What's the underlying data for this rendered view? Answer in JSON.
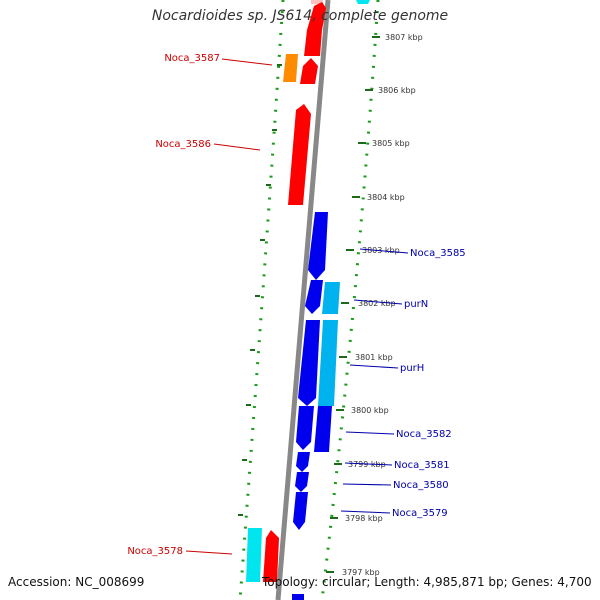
{
  "title": "Nocardioides sp. JS614, complete genome",
  "footer": {
    "accession": "Accession: NC_008699",
    "summary": "Topology: circular; Length: 4,985,871 bp; Genes: 4,700"
  },
  "colors": {
    "forward_red": "#ff0000",
    "forward_orange": "#ff8c00",
    "forward_cyan": "#00e5ee",
    "reverse_blue": "#0000ee",
    "reverse_lightblue": "#00b2ee",
    "backbone": "#888888",
    "dots": "#1a9a1a",
    "label_fwd": "#cc0000",
    "label_rev": "#0000aa"
  },
  "ticks": [
    "3807 kbp",
    "3806 kbp",
    "3805 kbp",
    "3804 kbp",
    "3803 kbp",
    "3802 kbp",
    "3801 kbp",
    "3800 kbp",
    "3799 kbp",
    "3798 kbp",
    "3797 kbp"
  ],
  "gene_labels": {
    "left": [
      "Noca_3587",
      "Noca_3586",
      "Noca_3578"
    ],
    "right": [
      "Noca_3585",
      "purN",
      "purH",
      "Noca_3582",
      "Noca_3581",
      "Noca_3580",
      "Noca_3579"
    ]
  }
}
